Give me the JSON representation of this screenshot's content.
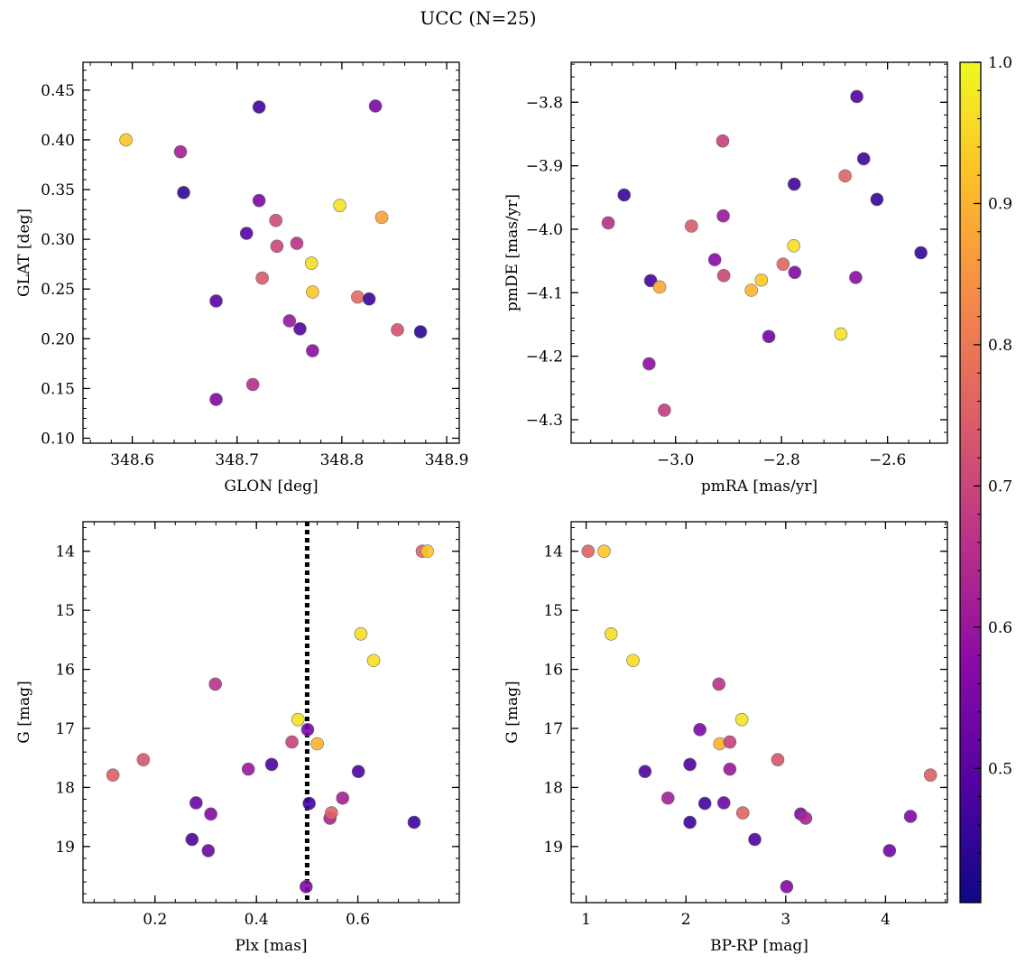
{
  "figure": {
    "title": "UCC (N=25)"
  },
  "colorbar": {
    "range": [
      0.405,
      1.0
    ],
    "ticks": [
      0.5,
      0.6,
      0.7,
      0.8,
      0.9,
      1.0
    ],
    "tick_labels": [
      "0.5",
      "0.6",
      "0.7",
      "0.8",
      "0.9",
      "1.0"
    ],
    "colormap": "plasma",
    "stops": [
      "#0d0887",
      "#5402a3",
      "#8b0aa5",
      "#b93289",
      "#db5c68",
      "#f48849",
      "#febc2a",
      "#f0f921"
    ]
  },
  "chart_data": [
    {
      "type": "scatter",
      "xlabel": "GLON [deg]",
      "ylabel": "GLAT [deg]",
      "xlim": [
        348.553,
        348.912
      ],
      "ylim": [
        0.095,
        0.478
      ],
      "xticks": [
        348.6,
        348.7,
        348.8,
        348.9
      ],
      "xtick_labels": [
        "348.6",
        "348.7",
        "348.8",
        "348.9"
      ],
      "yticks": [
        0.1,
        0.15,
        0.2,
        0.25,
        0.3,
        0.35,
        0.4,
        0.45
      ],
      "ytick_labels": [
        "0.10",
        "0.15",
        "0.20",
        "0.25",
        "0.30",
        "0.35",
        "0.40",
        "0.45"
      ],
      "invert_y": false,
      "points": [
        {
          "x": 348.594,
          "y": 0.4,
          "c": 0.93
        },
        {
          "x": 348.646,
          "y": 0.388,
          "c": 0.62
        },
        {
          "x": 348.649,
          "y": 0.347,
          "c": 0.45
        },
        {
          "x": 348.68,
          "y": 0.238,
          "c": 0.5
        },
        {
          "x": 348.68,
          "y": 0.139,
          "c": 0.56
        },
        {
          "x": 348.709,
          "y": 0.306,
          "c": 0.49
        },
        {
          "x": 348.715,
          "y": 0.154,
          "c": 0.65
        },
        {
          "x": 348.721,
          "y": 0.433,
          "c": 0.47
        },
        {
          "x": 348.721,
          "y": 0.339,
          "c": 0.55
        },
        {
          "x": 348.724,
          "y": 0.261,
          "c": 0.74
        },
        {
          "x": 348.737,
          "y": 0.319,
          "c": 0.71
        },
        {
          "x": 348.738,
          "y": 0.293,
          "c": 0.7
        },
        {
          "x": 348.75,
          "y": 0.218,
          "c": 0.6
        },
        {
          "x": 348.757,
          "y": 0.296,
          "c": 0.66
        },
        {
          "x": 348.76,
          "y": 0.21,
          "c": 0.49
        },
        {
          "x": 348.771,
          "y": 0.276,
          "c": 0.96
        },
        {
          "x": 348.772,
          "y": 0.247,
          "c": 0.93
        },
        {
          "x": 348.772,
          "y": 0.188,
          "c": 0.58
        },
        {
          "x": 348.798,
          "y": 0.334,
          "c": 0.97
        },
        {
          "x": 348.815,
          "y": 0.242,
          "c": 0.77
        },
        {
          "x": 348.826,
          "y": 0.24,
          "c": 0.46
        },
        {
          "x": 348.832,
          "y": 0.434,
          "c": 0.55
        },
        {
          "x": 348.838,
          "y": 0.322,
          "c": 0.87
        },
        {
          "x": 348.853,
          "y": 0.209,
          "c": 0.72
        },
        {
          "x": 348.875,
          "y": 0.207,
          "c": 0.44
        }
      ]
    },
    {
      "type": "scatter",
      "xlabel": "pmRA [mas/yr]",
      "ylabel": "pmDE [mas/yr]",
      "xlim": [
        -3.197,
        -2.487
      ],
      "ylim": [
        -4.337,
        -3.737
      ],
      "xticks": [
        -3.0,
        -2.8,
        -2.6
      ],
      "xtick_labels": [
        "−3.0",
        "−2.8",
        "−2.6"
      ],
      "yticks": [
        -4.3,
        -4.2,
        -4.1,
        -4.0,
        -3.9,
        -3.8
      ],
      "ytick_labels": [
        "−4.3",
        "−4.2",
        "−4.1",
        "−4.0",
        "−3.9",
        "−3.8"
      ],
      "invert_y": false,
      "points": [
        {
          "x": -3.127,
          "y": -3.99,
          "c": 0.65
        },
        {
          "x": -3.097,
          "y": -3.946,
          "c": 0.46
        },
        {
          "x": -3.05,
          "y": -4.212,
          "c": 0.58
        },
        {
          "x": -3.047,
          "y": -4.081,
          "c": 0.47
        },
        {
          "x": -3.03,
          "y": -4.091,
          "c": 0.88
        },
        {
          "x": -3.021,
          "y": -4.285,
          "c": 0.68
        },
        {
          "x": -2.97,
          "y": -3.995,
          "c": 0.74
        },
        {
          "x": -2.926,
          "y": -4.048,
          "c": 0.57
        },
        {
          "x": -2.911,
          "y": -3.861,
          "c": 0.69
        },
        {
          "x": -2.91,
          "y": -3.979,
          "c": 0.6
        },
        {
          "x": -2.909,
          "y": -4.073,
          "c": 0.7
        },
        {
          "x": -2.857,
          "y": -4.096,
          "c": 0.9
        },
        {
          "x": -2.838,
          "y": -4.08,
          "c": 0.93
        },
        {
          "x": -2.824,
          "y": -4.169,
          "c": 0.53
        },
        {
          "x": -2.797,
          "y": -4.055,
          "c": 0.76
        },
        {
          "x": -2.777,
          "y": -4.026,
          "c": 0.96
        },
        {
          "x": -2.776,
          "y": -3.929,
          "c": 0.47
        },
        {
          "x": -2.775,
          "y": -4.068,
          "c": 0.56
        },
        {
          "x": -2.688,
          "y": -4.165,
          "c": 0.97
        },
        {
          "x": -2.68,
          "y": -3.916,
          "c": 0.76
        },
        {
          "x": -2.66,
          "y": -4.076,
          "c": 0.58
        },
        {
          "x": -2.658,
          "y": -3.791,
          "c": 0.48
        },
        {
          "x": -2.645,
          "y": -3.889,
          "c": 0.47
        },
        {
          "x": -2.62,
          "y": -3.953,
          "c": 0.45
        },
        {
          "x": -2.537,
          "y": -4.037,
          "c": 0.45
        }
      ]
    },
    {
      "type": "scatter",
      "xlabel": "Plx [mas]",
      "ylabel": "G [mag]",
      "xlim": [
        0.058,
        0.8
      ],
      "ylim": [
        13.5,
        19.95
      ],
      "xticks": [
        0.2,
        0.4,
        0.6
      ],
      "xtick_labels": [
        "0.2",
        "0.4",
        "0.6"
      ],
      "yticks": [
        14,
        15,
        16,
        17,
        18,
        19
      ],
      "ytick_labels": [
        "14",
        "15",
        "16",
        "17",
        "18",
        "19"
      ],
      "invert_y": true,
      "vline": {
        "x": 0.5,
        "style": "dotted"
      },
      "points": [
        {
          "x": 0.117,
          "y": 17.79,
          "c": 0.75
        },
        {
          "x": 0.177,
          "y": 17.53,
          "c": 0.73
        },
        {
          "x": 0.273,
          "y": 18.88,
          "c": 0.48
        },
        {
          "x": 0.281,
          "y": 18.26,
          "c": 0.53
        },
        {
          "x": 0.305,
          "y": 19.07,
          "c": 0.53
        },
        {
          "x": 0.31,
          "y": 18.45,
          "c": 0.56
        },
        {
          "x": 0.319,
          "y": 16.25,
          "c": 0.66
        },
        {
          "x": 0.384,
          "y": 17.69,
          "c": 0.6
        },
        {
          "x": 0.43,
          "y": 17.61,
          "c": 0.48
        },
        {
          "x": 0.47,
          "y": 17.23,
          "c": 0.69
        },
        {
          "x": 0.482,
          "y": 16.85,
          "c": 0.97
        },
        {
          "x": 0.498,
          "y": 19.68,
          "c": 0.56
        },
        {
          "x": 0.501,
          "y": 17.02,
          "c": 0.55
        },
        {
          "x": 0.504,
          "y": 18.27,
          "c": 0.47
        },
        {
          "x": 0.52,
          "y": 17.26,
          "c": 0.9
        },
        {
          "x": 0.545,
          "y": 18.52,
          "c": 0.63
        },
        {
          "x": 0.548,
          "y": 18.43,
          "c": 0.76
        },
        {
          "x": 0.57,
          "y": 18.18,
          "c": 0.62
        },
        {
          "x": 0.601,
          "y": 17.73,
          "c": 0.48
        },
        {
          "x": 0.606,
          "y": 15.4,
          "c": 0.96
        },
        {
          "x": 0.631,
          "y": 15.85,
          "c": 0.96
        },
        {
          "x": 0.711,
          "y": 18.59,
          "c": 0.46
        },
        {
          "x": 0.727,
          "y": 14.0,
          "c": 0.76
        },
        {
          "x": 0.737,
          "y": 14.0,
          "c": 0.93
        }
      ]
    },
    {
      "type": "scatter",
      "xlabel": "BP-RP [mag]",
      "ylabel": "G [mag]",
      "xlim": [
        0.85,
        4.62
      ],
      "ylim": [
        13.5,
        19.95
      ],
      "xticks": [
        1,
        2,
        3,
        4
      ],
      "xtick_labels": [
        "1",
        "2",
        "3",
        "4"
      ],
      "yticks": [
        14,
        15,
        16,
        17,
        18,
        19
      ],
      "ytick_labels": [
        "14",
        "15",
        "16",
        "17",
        "18",
        "19"
      ],
      "invert_y": true,
      "points": [
        {
          "x": 1.02,
          "y": 14.0,
          "c": 0.76
        },
        {
          "x": 1.18,
          "y": 14.0,
          "c": 0.93
        },
        {
          "x": 1.25,
          "y": 15.4,
          "c": 0.96
        },
        {
          "x": 1.47,
          "y": 15.85,
          "c": 0.96
        },
        {
          "x": 1.59,
          "y": 17.73,
          "c": 0.48
        },
        {
          "x": 1.82,
          "y": 18.18,
          "c": 0.62
        },
        {
          "x": 2.04,
          "y": 18.59,
          "c": 0.46
        },
        {
          "x": 2.04,
          "y": 17.61,
          "c": 0.48
        },
        {
          "x": 2.14,
          "y": 17.02,
          "c": 0.55
        },
        {
          "x": 2.19,
          "y": 18.27,
          "c": 0.47
        },
        {
          "x": 2.33,
          "y": 16.25,
          "c": 0.66
        },
        {
          "x": 2.34,
          "y": 17.26,
          "c": 0.9
        },
        {
          "x": 2.38,
          "y": 18.26,
          "c": 0.53
        },
        {
          "x": 2.44,
          "y": 17.23,
          "c": 0.69
        },
        {
          "x": 2.44,
          "y": 17.69,
          "c": 0.6
        },
        {
          "x": 2.56,
          "y": 16.85,
          "c": 0.97
        },
        {
          "x": 2.57,
          "y": 18.43,
          "c": 0.76
        },
        {
          "x": 2.69,
          "y": 18.88,
          "c": 0.48
        },
        {
          "x": 2.92,
          "y": 17.53,
          "c": 0.73
        },
        {
          "x": 3.01,
          "y": 19.68,
          "c": 0.56
        },
        {
          "x": 3.15,
          "y": 18.45,
          "c": 0.56
        },
        {
          "x": 3.2,
          "y": 18.52,
          "c": 0.63
        },
        {
          "x": 4.04,
          "y": 19.07,
          "c": 0.53
        },
        {
          "x": 4.25,
          "y": 18.49,
          "c": 0.56
        },
        {
          "x": 4.45,
          "y": 17.79,
          "c": 0.75
        }
      ]
    }
  ]
}
